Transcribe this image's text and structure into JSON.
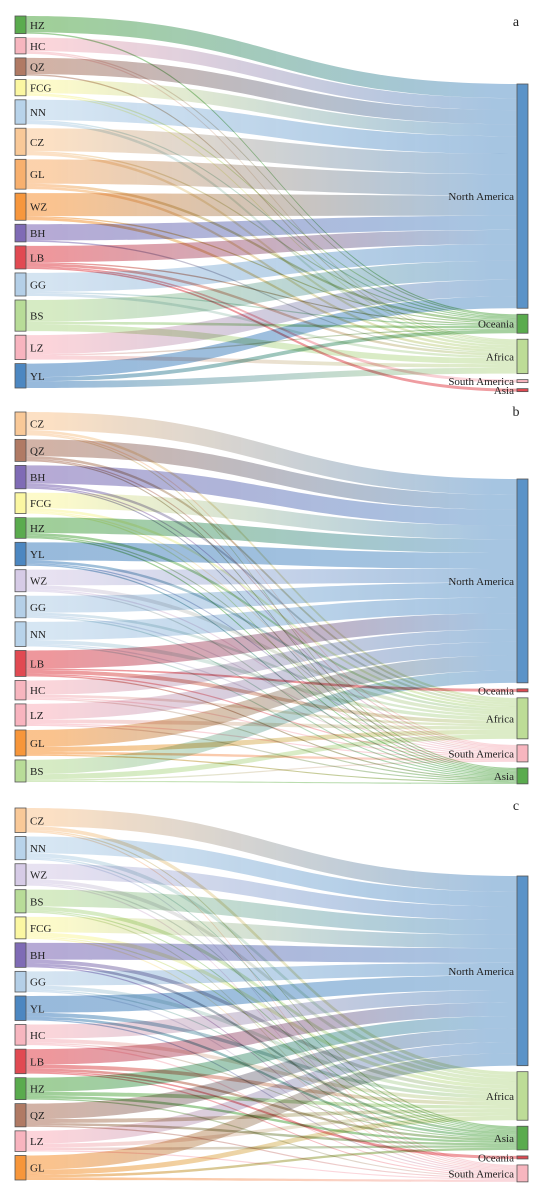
{
  "colors": {
    "HZ": "#5aab4e",
    "HC": "#f7b6bf",
    "QZ": "#b07a64",
    "FCG": "#fbf7a2",
    "NN": "#b8d3ea",
    "CZ": "#f9c998",
    "GL": "#f8b06e",
    "WZ": "#f7973d",
    "BH": "#7f6bb5",
    "LB": "#e14a52",
    "GG": "#b4cfe7",
    "BS": "#b8dc98",
    "LZ": "#f8b4bf",
    "YL": "#4c87c1",
    "WZ_b": "#d6cbe6",
    "GL_b": "#f7963a",
    "NA": "#5b93c8",
    "Oceania": "#5aab4e",
    "Africa": "#bddc97",
    "SouthAmerica": "#f7b6bf",
    "Asia": "#e14a52",
    "Asia_b": "#5aab4e",
    "Oceania_b": "#e14a52",
    "Asia_c": "#5aab4e"
  },
  "chart_data": [
    {
      "type": "sankey",
      "panel_label": "a",
      "sources": [
        "HZ",
        "HC",
        "QZ",
        "FCG",
        "NN",
        "CZ",
        "GL",
        "WZ",
        "BH",
        "LB",
        "GG",
        "BS",
        "LZ",
        "YL"
      ],
      "source_colors": [
        "HZ",
        "HC",
        "QZ",
        "FCG",
        "NN",
        "CZ",
        "GL",
        "WZ",
        "BH",
        "LB",
        "GG",
        "BS",
        "LZ",
        "YL"
      ],
      "targets": [
        "North America",
        "Oceania",
        "Africa",
        "South America",
        "Asia"
      ],
      "target_colors": [
        "NA",
        "Oceania",
        "Africa",
        "SouthAmerica",
        "Asia"
      ],
      "values": [
        [
          12,
          1,
          0,
          0,
          0
        ],
        [
          10,
          1,
          1,
          0,
          0
        ],
        [
          12,
          0,
          1,
          0,
          0
        ],
        [
          10,
          1,
          1,
          0,
          0
        ],
        [
          15,
          1,
          2,
          0,
          0
        ],
        [
          17,
          1,
          2,
          0,
          0
        ],
        [
          18,
          2,
          2,
          0,
          0
        ],
        [
          17,
          1,
          2,
          0,
          0
        ],
        [
          12,
          0,
          1,
          0,
          0
        ],
        [
          12,
          1,
          2,
          1,
          1
        ],
        [
          14,
          1,
          2,
          0,
          0
        ],
        [
          16,
          2,
          5,
          0,
          0
        ],
        [
          14,
          1,
          3,
          0,
          0
        ],
        [
          10,
          3,
          5,
          0,
          0
        ]
      ]
    },
    {
      "type": "sankey",
      "panel_label": "b",
      "sources": [
        "CZ",
        "QZ",
        "BH",
        "FCG",
        "HZ",
        "YL",
        "WZ",
        "GG",
        "NN",
        "LB",
        "HC",
        "LZ",
        "GL",
        "BS"
      ],
      "source_colors": [
        "CZ",
        "QZ",
        "BH",
        "FCG",
        "HZ",
        "YL",
        "WZ_b",
        "GG",
        "NN",
        "LB",
        "HC",
        "LZ",
        "GL_b",
        "BS"
      ],
      "targets": [
        "North America",
        "Oceania",
        "Africa",
        "South America",
        "Asia"
      ],
      "target_colors": [
        "NA",
        "Oceania_b",
        "Africa",
        "SouthAmerica",
        "Asia_b"
      ],
      "values": [
        [
          14,
          0,
          2,
          1,
          1
        ],
        [
          13,
          0,
          2,
          1,
          1
        ],
        [
          14,
          0,
          2,
          1,
          1
        ],
        [
          12,
          0,
          2,
          1,
          1
        ],
        [
          12,
          0,
          2,
          1,
          1
        ],
        [
          14,
          0,
          2,
          1,
          1
        ],
        [
          12,
          0,
          3,
          1,
          1
        ],
        [
          13,
          0,
          2,
          1,
          1
        ],
        [
          14,
          0,
          3,
          1,
          1
        ],
        [
          14,
          1,
          3,
          1,
          1
        ],
        [
          11,
          0,
          2,
          1,
          1
        ],
        [
          12,
          0,
          3,
          1,
          1
        ],
        [
          13,
          0,
          4,
          2,
          1
        ],
        [
          11,
          0,
          4,
          1,
          1
        ]
      ]
    },
    {
      "type": "sankey",
      "panel_label": "c",
      "sources": [
        "CZ",
        "NN",
        "WZ",
        "BS",
        "FCG",
        "BH",
        "GG",
        "YL",
        "HC",
        "LB",
        "HZ",
        "QZ",
        "LZ",
        "GL"
      ],
      "source_colors": [
        "CZ",
        "NN",
        "WZ_b",
        "BS",
        "FCG",
        "BH",
        "GG",
        "YL",
        "HC",
        "LB",
        "HZ",
        "QZ",
        "LZ",
        "GL_b"
      ],
      "targets": [
        "North America",
        "Africa",
        "Asia",
        "Oceania",
        "South America"
      ],
      "target_colors": [
        "NA",
        "Africa",
        "Asia_c",
        "Oceania_b",
        "SouthAmerica"
      ],
      "values": [
        [
          14,
          3,
          1,
          0,
          1
        ],
        [
          13,
          3,
          1,
          0,
          1
        ],
        [
          12,
          3,
          1,
          0,
          1
        ],
        [
          13,
          3,
          1,
          0,
          1
        ],
        [
          12,
          3,
          1,
          0,
          1
        ],
        [
          13,
          3,
          2,
          0,
          1
        ],
        [
          11,
          3,
          1,
          0,
          1
        ],
        [
          13,
          3,
          2,
          0,
          1
        ],
        [
          11,
          3,
          1,
          0,
          1
        ],
        [
          12,
          3,
          2,
          1,
          1
        ],
        [
          11,
          3,
          2,
          0,
          1
        ],
        [
          12,
          3,
          2,
          0,
          1
        ],
        [
          10,
          3,
          2,
          0,
          1
        ],
        [
          11,
          4,
          2,
          0,
          2
        ]
      ]
    }
  ]
}
